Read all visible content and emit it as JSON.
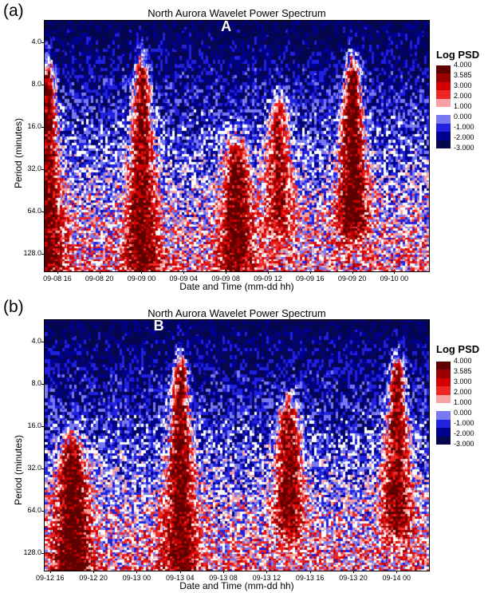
{
  "colors": {
    "colormap": [
      "#06064f",
      "#00008e",
      "#2121e0",
      "#7878f0",
      "#ffffff",
      "#f7a2a2",
      "#ee2626",
      "#d40000",
      "#9a0000",
      "#5e0000"
    ],
    "annotation": "#ffffff"
  },
  "colorbar": {
    "title": "Log PSD",
    "labels": [
      "4.000",
      "3.585",
      "3.000",
      "2.000",
      "1.000",
      "0.000",
      "-1.000",
      "-2.000",
      "-3.000"
    ]
  },
  "chart_data": [
    {
      "type": "heatmap",
      "panel_label": "(a)",
      "title": "North Aurora Wavelet Power Spectrum",
      "xlabel": "Date and Time (mm-dd hh)",
      "ylabel": "Period (minutes)",
      "y_scale": "log",
      "y_ticks": [
        "4.0",
        "8.0",
        "16.0",
        "32.0",
        "64.0",
        "128.0"
      ],
      "y_tick_values": [
        4,
        8,
        16,
        32,
        64,
        128
      ],
      "y_range": [
        2.8,
        170
      ],
      "x_ticks": [
        "09-08 16",
        "09-08 20",
        "09-09 00",
        "09-09 04",
        "09-09 08",
        "09-09 12",
        "09-09 16",
        "09-09 20",
        "09-10 00"
      ],
      "x_range": [
        "09-08 14.8",
        "09-10 03.3"
      ],
      "color_range": [
        -3.0,
        4.0
      ],
      "annotation": "A",
      "annotation_at": [
        "09-09 08",
        4.0
      ],
      "high_power_regions": [
        {
          "time": "09-08 15",
          "period_min": 8,
          "period_max": 128,
          "log_psd": 3.0
        },
        {
          "time": "09-09 00",
          "period_min": 8,
          "period_max": 128,
          "log_psd": 3.0
        },
        {
          "time": "09-09 09",
          "period_min": 32,
          "period_max": 128,
          "log_psd": 3.0
        },
        {
          "time": "09-09 13",
          "period_min": 16,
          "period_max": 64,
          "log_psd": 2.0
        },
        {
          "time": "09-09 20",
          "period_min": 8,
          "period_max": 64,
          "log_psd": 4.0
        }
      ]
    },
    {
      "type": "heatmap",
      "panel_label": "(b)",
      "title": "North Aurora Wavelet Power Spectrum",
      "xlabel": "Date and Time (mm-dd hh)",
      "ylabel": "Period (minutes)",
      "y_scale": "log",
      "y_ticks": [
        "4.0",
        "8.0",
        "16.0",
        "32.0",
        "64.0",
        "128.0"
      ],
      "y_tick_values": [
        4,
        8,
        16,
        32,
        64,
        128
      ],
      "y_range": [
        2.8,
        170
      ],
      "x_ticks": [
        "09-12 16",
        "09-12 20",
        "09-13 00",
        "09-13 04",
        "09-13 08",
        "09-13 12",
        "09-13 16",
        "09-13 20",
        "09-14 00"
      ],
      "x_range": [
        "09-12 15.5",
        "09-14 03.0"
      ],
      "color_range": [
        -3.0,
        4.0
      ],
      "annotation": "B",
      "annotation_at": [
        "09-13 02",
        4.0
      ],
      "high_power_regions": [
        {
          "time": "09-12 18",
          "period_min": 32,
          "period_max": 170,
          "log_psd": 4.0
        },
        {
          "time": "09-13 04",
          "period_min": 8,
          "period_max": 128,
          "log_psd": 3.0
        },
        {
          "time": "09-13 14",
          "period_min": 16,
          "period_max": 64,
          "log_psd": 3.0
        },
        {
          "time": "09-14 00",
          "period_min": 8,
          "period_max": 64,
          "log_psd": 3.0
        }
      ]
    }
  ]
}
